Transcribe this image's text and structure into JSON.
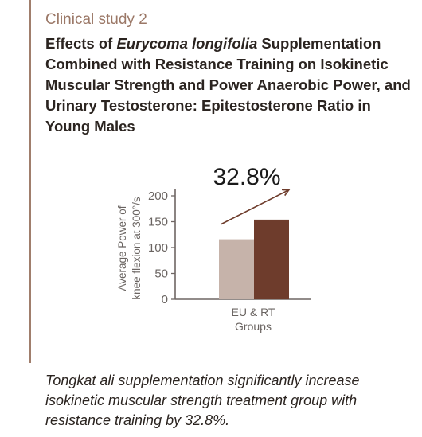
{
  "header": {
    "kicker": "Clinical study 2",
    "title_part1": "Effects of ",
    "title_italic": "Eurycoma longifolia",
    "title_part2": " Supplementation Combined with Resistance Training on Isokinetic Muscular Strength and Power Anaerobic Power, and Urinary Testosterone: Epitestosterone Ratio in Young Males"
  },
  "chart_data": {
    "type": "bar",
    "headline": "32.8%",
    "categories": [
      "EU & RT Groups"
    ],
    "xlabel_lines": [
      "EU & RT",
      "Groups"
    ],
    "ylabel_lines": [
      "Average Power of",
      "knee flexion at 300°/s"
    ],
    "series": [
      {
        "values": [
          116
        ],
        "color": "#c6b3aa"
      },
      {
        "values": [
          154
        ],
        "color": "#6e3c2c"
      }
    ],
    "ylim": [
      0,
      200
    ],
    "yticks": [
      0,
      50,
      100,
      150,
      200
    ],
    "grid": false,
    "trend_arrow": true
  },
  "caption": "Tongkat ali supplementation significantly increase isokinetic muscular strength treatment group with resistance training by 32.8%."
}
